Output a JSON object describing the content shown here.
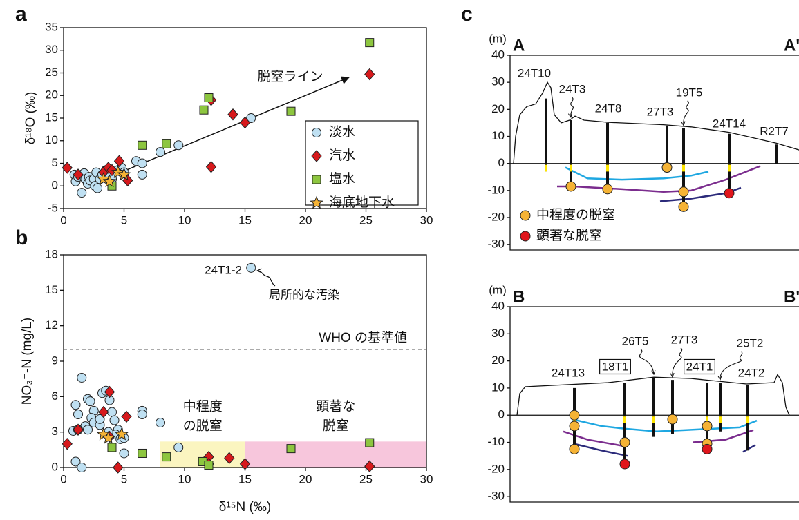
{
  "chart_data": [
    {
      "type": "scatter",
      "panel_label": "a",
      "ylabel": "δ¹⁸O (‰)",
      "line_label": "脱窒ライン",
      "xlim": [
        0,
        30
      ],
      "xticks": [
        0,
        5,
        10,
        15,
        20,
        25,
        30
      ],
      "ylim": [
        -5,
        35
      ],
      "yticks": [
        -5,
        0,
        5,
        10,
        15,
        20,
        25,
        30,
        35
      ],
      "legend": "lower right",
      "series": [
        {
          "name": "淡水",
          "marker": "circle",
          "color": "#bfe0f2",
          "x": [
            0.9,
            1.0,
            1.2,
            1.5,
            1.5,
            1.7,
            1.8,
            2.0,
            2.1,
            2.2,
            2.5,
            2.6,
            2.7,
            2.8,
            3.0,
            3.2,
            3.5,
            3.8,
            4.0,
            4.5,
            4.8,
            5.0,
            6.0,
            6.5,
            6.5,
            8.0,
            9.5,
            15.5
          ],
          "values": [
            2.5,
            1.0,
            2.0,
            -1.5,
            2.5,
            2.8,
            1.5,
            0.5,
            2.0,
            1.2,
            1.5,
            0.0,
            3.0,
            -0.5,
            1.5,
            2.5,
            3.5,
            2.0,
            1.5,
            3.5,
            4.0,
            3.0,
            5.5,
            5.0,
            2.5,
            7.5,
            9.0,
            15.0
          ]
        },
        {
          "name": "汽水",
          "marker": "diamond",
          "color": "#d7191c",
          "x": [
            0.3,
            1.2,
            3.3,
            3.7,
            4.0,
            4.6,
            5.3,
            12.2,
            12.2,
            14.0,
            15.0,
            25.3
          ],
          "values": [
            4.0,
            2.5,
            3.0,
            4.0,
            3.5,
            5.5,
            1.2,
            19.0,
            4.2,
            15.8,
            14.0,
            24.7
          ]
        },
        {
          "name": "塩水",
          "marker": "square",
          "color": "#8dc63f",
          "x": [
            4.0,
            6.5,
            8.5,
            11.6,
            12.0,
            18.8,
            25.3
          ],
          "values": [
            0.0,
            9.0,
            9.3,
            16.8,
            19.5,
            16.5,
            31.7
          ]
        },
        {
          "name": "海底地下水",
          "marker": "star",
          "color": "#f5b335",
          "x": [
            3.3,
            3.8,
            4.5,
            5.0
          ],
          "values": [
            1.5,
            1.0,
            3.0,
            2.5
          ]
        }
      ]
    },
    {
      "type": "scatter",
      "panel_label": "b",
      "xlabel": "δ¹⁵N (‰)",
      "ylabel": "NO₃⁻-N (mg/L)",
      "xlim": [
        0,
        30
      ],
      "xticks": [
        0,
        5,
        10,
        15,
        20,
        25,
        30
      ],
      "ylim": [
        0,
        18
      ],
      "yticks": [
        0,
        3,
        6,
        9,
        12,
        15,
        18
      ],
      "hline": {
        "value": 10,
        "label": "WHO の基準値"
      },
      "regions": [
        {
          "label": [
            "中程度",
            "の脱窒"
          ],
          "xlim": [
            8,
            15
          ],
          "ylim": [
            0,
            2.2
          ],
          "color": "#fbf5c0"
        },
        {
          "label": [
            "顕著な",
            "脱窒"
          ],
          "xlim": [
            15,
            30
          ],
          "ylim": [
            0,
            2.2
          ],
          "color": "#f7c6dc"
        }
      ],
      "annotation": {
        "label": "24T1-2",
        "note": "局所的な汚染"
      },
      "series": [
        {
          "name": "淡水",
          "marker": "circle",
          "color": "#bfe0f2",
          "x": [
            1.0,
            1.5,
            1.2,
            0.8,
            2.0,
            2.2,
            2.5,
            2.3,
            1.8,
            2.0,
            2.5,
            3.0,
            3.2,
            3.5,
            3.8,
            4.0,
            4.2,
            4.5,
            4.3,
            4.7,
            5.0,
            3.0,
            3.7,
            5.0,
            6.5,
            6.5,
            8.0,
            9.5,
            1.0,
            1.5,
            1.2,
            15.5
          ],
          "values": [
            5.3,
            7.6,
            4.5,
            3.1,
            5.8,
            5.6,
            4.8,
            4.2,
            3.5,
            3.2,
            3.8,
            3.6,
            6.3,
            6.5,
            5.7,
            4.7,
            4.0,
            3.2,
            2.8,
            2.4,
            2.5,
            4.1,
            3.0,
            1.2,
            4.8,
            4.5,
            3.8,
            1.7,
            0.5,
            0.0,
            3.2,
            16.9
          ]
        },
        {
          "name": "汽水",
          "marker": "diamond",
          "color": "#d7191c",
          "x": [
            0.3,
            1.2,
            3.3,
            3.8,
            3.8,
            5.2,
            4.5,
            12.0,
            12.0,
            13.7,
            15.0,
            25.3
          ],
          "values": [
            2.0,
            3.2,
            4.7,
            6.4,
            2.6,
            4.3,
            0.0,
            0.9,
            0.3,
            0.8,
            0.3,
            0.1
          ]
        },
        {
          "name": "塩水",
          "marker": "square",
          "color": "#8dc63f",
          "x": [
            4.0,
            6.5,
            8.5,
            11.5,
            12.0,
            18.8,
            25.3
          ],
          "values": [
            1.7,
            1.2,
            0.9,
            0.5,
            0.2,
            1.6,
            2.1
          ]
        },
        {
          "name": "海底地下水",
          "marker": "star",
          "color": "#f5b335",
          "x": [
            3.3,
            3.7,
            4.8
          ],
          "values": [
            2.8,
            2.5,
            2.8
          ]
        }
      ]
    },
    {
      "type": "section",
      "panel_label": "c",
      "series": [
        {
          "name": "中程度の脱窒",
          "color": "#f5b335"
        },
        {
          "name": "顕著な脱窒",
          "color": "#e0161c"
        }
      ],
      "panels": [
        {
          "title_left": "A",
          "title_right": "A'",
          "y_unit": "(m)",
          "ylim": [
            -32,
            40
          ],
          "yticks": [
            -30,
            -20,
            -10,
            0,
            10,
            20,
            30,
            40
          ],
          "wells": [
            {
              "name": "24T10",
              "top": 24,
              "bottom": -3,
              "values": [
                [],
                []
              ]
            },
            {
              "name": "24T3",
              "top": 16,
              "bottom": -8.5,
              "values": [
                [
                  -8.5
                ],
                []
              ]
            },
            {
              "name": "24T8",
              "top": 15,
              "bottom": -9.5,
              "values": [
                [
                  -9.5
                ],
                []
              ]
            },
            {
              "name": "27T3",
              "top": 14,
              "bottom": -1.5,
              "values": [
                [
                  -1.5
                ],
                []
              ]
            },
            {
              "name": "19T5",
              "top": 13,
              "bottom": -16,
              "values": [
                [
                  -10.5,
                  -16
                ],
                []
              ]
            },
            {
              "name": "24T14",
              "top": 11,
              "bottom": -11,
              "values": [
                [],
                [
                  -11
                ]
              ]
            },
            {
              "name": "R2T7",
              "top": 7,
              "bottom": 0,
              "values": [
                [],
                []
              ]
            }
          ]
        },
        {
          "title_left": "B",
          "title_right": "B'",
          "y_unit": "(m)",
          "ylim": [
            -32,
            40
          ],
          "yticks": [
            -30,
            -20,
            -10,
            0,
            10,
            20,
            30,
            40
          ],
          "wells": [
            {
              "name": "24T13",
              "top": 10,
              "bottom": -12.5,
              "values": [
                [
                  0,
                  -4,
                  -12.5
                ],
                []
              ]
            },
            {
              "name": "18T1",
              "boxed": true,
              "top": 12,
              "bottom": -18,
              "values": [
                [
                  -10
                ],
                [
                  -18
                ]
              ]
            },
            {
              "name": "26T5",
              "top": 14,
              "bottom": -8,
              "values": [
                [],
                []
              ]
            },
            {
              "name": "27T3",
              "top": 13,
              "bottom": -7,
              "values": [
                [
                  -1.5
                ],
                []
              ]
            },
            {
              "name": "24T1",
              "boxed": true,
              "top": 12,
              "bottom": -12,
              "values": [
                [
                  -4,
                  -10.5
                ],
                [
                  -12.5
                ]
              ]
            },
            {
              "name": "25T2",
              "top": 12,
              "bottom": -6,
              "values": [
                [],
                []
              ]
            },
            {
              "name": "24T2",
              "top": 11,
              "bottom": -13,
              "values": [
                [],
                []
              ]
            }
          ]
        }
      ]
    }
  ]
}
